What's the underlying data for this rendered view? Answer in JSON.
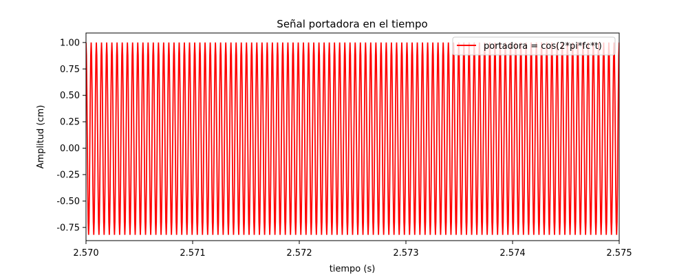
{
  "chart_data": {
    "type": "line",
    "title": "Señal portadora en el tiempo",
    "xlabel": "tiempo (s)",
    "ylabel": "Amplitud (cm)",
    "xlim": [
      2.57,
      2.575
    ],
    "ylim": [
      -0.875,
      1.09
    ],
    "xticks": [
      "2.570",
      "2.571",
      "2.572",
      "2.573",
      "2.574",
      "2.575"
    ],
    "yticks": [
      "-0.75",
      "-0.50",
      "-0.25",
      "0.00",
      "0.25",
      "0.50",
      "0.75",
      "1.00"
    ],
    "grid": false,
    "legend": "top-right",
    "series": [
      {
        "name": "portadora = cos(2*pi*fc*t)",
        "color": "#ff0000",
        "function": "cos(2*pi*fc*t)",
        "cycles_visible": 103,
        "max": 1.0,
        "min": -0.82
      }
    ]
  }
}
